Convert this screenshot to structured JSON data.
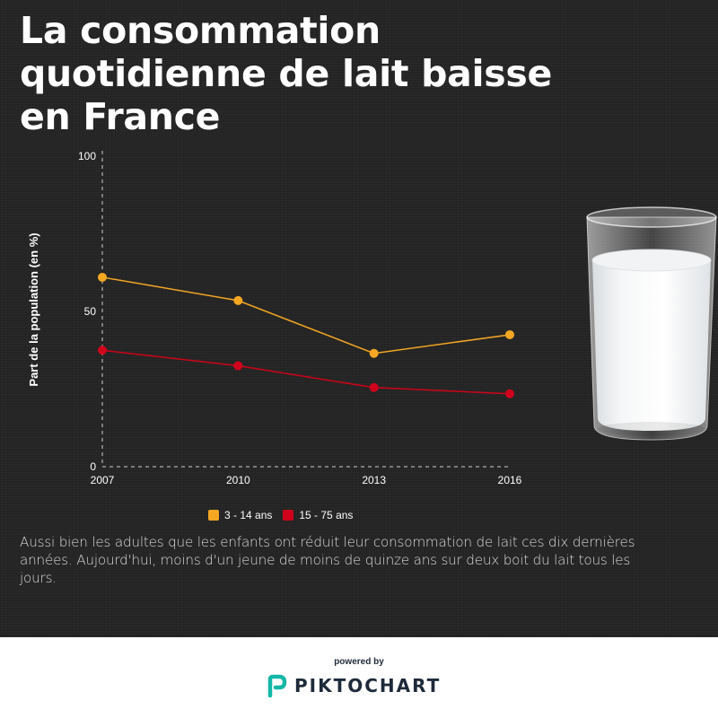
{
  "poster": {
    "title": "La consommation quotidienne de lait baisse en France",
    "caption": "Aussi bien les adultes que les enfants ont réduit leur consommation de lait ces dix dernières années. Aujourd'hui, moins d'un jeune de moins de quinze ans sur deux boit du lait tous les jours."
  },
  "chart_data": {
    "type": "line",
    "title": "La consommation quotidienne de lait baisse en France",
    "xlabel": "",
    "ylabel": "Part de la population (en %)",
    "categories": [
      "2007",
      "2010",
      "2013",
      "2016"
    ],
    "yticks": [
      "0",
      "50",
      "100"
    ],
    "ylim": [
      0,
      100
    ],
    "grid": false,
    "legend_position": "bottom",
    "series": [
      {
        "name": "3 - 14 ans",
        "color": "#f5a623",
        "values": [
          61,
          53.5,
          36.5,
          42.5
        ]
      },
      {
        "name": "15 - 75 ans",
        "color": "#d0021b",
        "values": [
          37.5,
          32.5,
          25.5,
          23.5
        ]
      }
    ]
  },
  "footer": {
    "powered_by": "powered by",
    "brand": "PIKTOCHART",
    "brand_color": "#14b8a6"
  },
  "colors": {
    "background": "#252525",
    "text": "#ffffff"
  }
}
